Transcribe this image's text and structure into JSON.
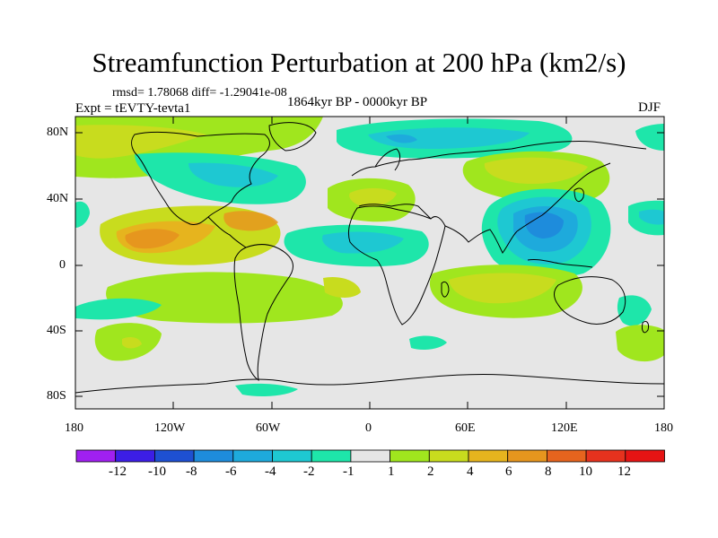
{
  "title": "Streamfunction Perturbation at 200 hPa (km2/s)",
  "stats": "rmsd= 1.78068 diff= -1.29041e-08",
  "period": "1864kyr BP - 0000kyr BP",
  "experiment": "Expt = tEVTY-tevta1",
  "season": "DJF",
  "lat_labels": [
    "80N",
    "40N",
    "0",
    "40S",
    "80S"
  ],
  "lon_labels": [
    "180",
    "120W",
    "60W",
    "0",
    "60E",
    "120E",
    "180"
  ],
  "colorbar": {
    "labels": [
      "-12",
      "-10",
      "-8",
      "-6",
      "-4",
      "-2",
      "-1",
      "1",
      "2",
      "4",
      "6",
      "8",
      "10",
      "12"
    ],
    "colors": [
      "#a020f0",
      "#3c1ee6",
      "#1e50d2",
      "#1e8cdc",
      "#1eaadc",
      "#1ec8d2",
      "#1ee6aa",
      "#e6e6e6",
      "#a0e61e",
      "#c8dc1e",
      "#e6b41e",
      "#e6961e",
      "#e6641e",
      "#e6321e",
      "#e61414"
    ]
  }
}
